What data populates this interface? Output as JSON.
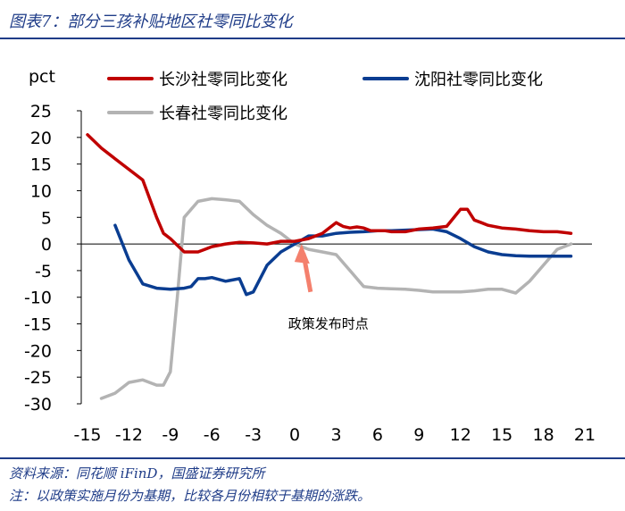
{
  "header": {
    "title": "图表7：部分三孩补贴地区社零同比变化"
  },
  "footer": {
    "source": "资料来源：同花顺 iFinD，国盛证券研究所",
    "note": "注：以政策实施月份为基期，比较各月份相较于基期的涨跌。"
  },
  "colors": {
    "changsha": "#c00000",
    "shenyang": "#0a3d91",
    "changchun": "#b3b3b3",
    "arrow": "#f4806d",
    "header_blue": "#1f3c88"
  },
  "chart_data": {
    "type": "line",
    "ylabel": "pct",
    "ylim": [
      -30,
      25
    ],
    "yticks": [
      25,
      20,
      15,
      10,
      5,
      0,
      -5,
      -10,
      -15,
      -20,
      -25,
      -30
    ],
    "xlim": [
      -15,
      21
    ],
    "xticks": [
      -15,
      -12,
      -9,
      -6,
      -3,
      0,
      3,
      6,
      9,
      12,
      15,
      18,
      21
    ],
    "grid": false,
    "legend_position": "top",
    "series": [
      {
        "name": "长沙社零同比变化",
        "color_key": "changsha",
        "x": [
          -15,
          -14,
          -13,
          -12,
          -11,
          -10,
          -9.5,
          -9,
          -8,
          -7,
          -6.5,
          -6,
          -5,
          -4,
          -3,
          -2,
          -1,
          0,
          1,
          2,
          3,
          3.5,
          4,
          4.5,
          5,
          5.5,
          6,
          6.5,
          7,
          8,
          9,
          10,
          11,
          12,
          12.5,
          13,
          13.5,
          14,
          15,
          16,
          17,
          18,
          19,
          20
        ],
        "values": [
          20.5,
          18,
          16,
          14,
          12,
          5,
          2,
          1,
          -1.5,
          -1.5,
          -1.0,
          -0.5,
          0,
          0.3,
          0.2,
          0,
          0.5,
          0.5,
          1,
          2,
          4,
          3.3,
          3,
          3.2,
          3.0,
          2.5,
          2.5,
          2.5,
          2.3,
          2.3,
          2.8,
          3.0,
          3.3,
          6.5,
          6.5,
          4.5,
          4.0,
          3.5,
          3.0,
          2.8,
          2.5,
          2.3,
          2.3,
          2.0
        ]
      },
      {
        "name": "沈阳社零同比变化",
        "color_key": "shenyang",
        "x": [
          -13,
          -12,
          -11,
          -10,
          -9,
          -8,
          -7.5,
          -7,
          -6.5,
          -6,
          -5,
          -4,
          -3.5,
          -3,
          -2,
          -1,
          0,
          1,
          2,
          3,
          4,
          5,
          6,
          7,
          8,
          9,
          10,
          11,
          12,
          13,
          14,
          15,
          16,
          17,
          18,
          19,
          20
        ],
        "values": [
          3.5,
          -3,
          -7.5,
          -8.3,
          -8.5,
          -8.3,
          -8,
          -6.5,
          -6.5,
          -6.3,
          -7,
          -6.5,
          -9.5,
          -9,
          -4,
          -1.5,
          0,
          1.5,
          1.5,
          2,
          2.2,
          2.3,
          2.5,
          2.5,
          2.6,
          2.7,
          2.8,
          2.3,
          1,
          -0.5,
          -1.5,
          -2,
          -2.2,
          -2.3,
          -2.3,
          -2.3,
          -2.3
        ]
      },
      {
        "name": "长春社零同比变化",
        "color_key": "changchun",
        "x": [
          -14,
          -13,
          -12,
          -11,
          -10,
          -9.5,
          -9,
          -8.5,
          -8,
          -7,
          -6,
          -5,
          -4,
          -3,
          -2,
          -1,
          0,
          1,
          2,
          3,
          4,
          5,
          6,
          7,
          8,
          9,
          10,
          11,
          12,
          13,
          14,
          15,
          16,
          17,
          18,
          19,
          20
        ],
        "values": [
          -29,
          -28,
          -26,
          -25.5,
          -26.5,
          -26.5,
          -24,
          -10,
          5,
          8,
          8.5,
          8.3,
          8,
          5.5,
          3.5,
          2,
          0,
          -1,
          -1.5,
          -2,
          -5,
          -8,
          -8.3,
          -8.4,
          -8.5,
          -8.7,
          -9,
          -9,
          -9,
          -8.8,
          -8.5,
          -8.5,
          -9.2,
          -7,
          -4,
          -1,
          0
        ]
      }
    ],
    "annotations": [
      {
        "text": "政策发布时点",
        "x": 0.5,
        "y": -15
      }
    ]
  }
}
